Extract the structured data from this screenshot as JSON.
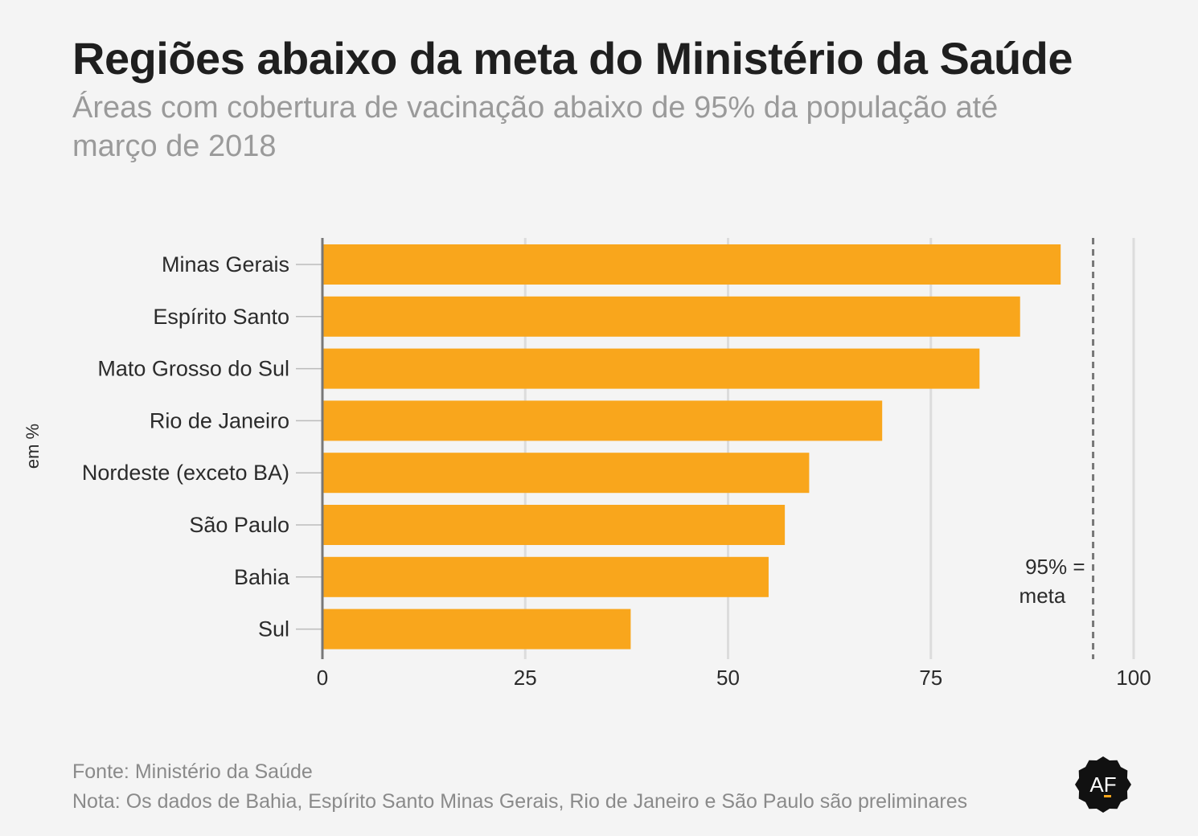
{
  "header": {
    "title": "Regiões abaixo da meta do Ministério da Saúde",
    "subtitle": "Áreas com cobertura de vacinação abaixo de 95% da população até março de 2018"
  },
  "footer": {
    "source": "Fonte: Ministério da Saúde",
    "note": "Nota: Os dados de Bahia, Espírito Santo Minas Gerais, Rio de Janeiro e São Paulo são preliminares"
  },
  "logo": {
    "text": "AF",
    "icon": "af-badge-icon"
  },
  "colors": {
    "bar": "#f9a61c",
    "grid": "#dcdcdc",
    "axis": "#777777",
    "text": "#2b2b2b"
  },
  "chart_data": {
    "type": "bar",
    "orientation": "horizontal",
    "categories": [
      "Minas Gerais",
      "Espírito Santo",
      "Mato Grosso do Sul",
      "Rio de Janeiro",
      "Nordeste (exceto BA)",
      "São Paulo",
      "Bahia",
      "Sul"
    ],
    "values": [
      91,
      86,
      81,
      69,
      60,
      57,
      55,
      38
    ],
    "xlim": [
      0,
      100
    ],
    "xticks": [
      "0",
      "25",
      "50",
      "75",
      "100"
    ],
    "ylabel": "em %",
    "grid": true,
    "reference_line": {
      "value": 95,
      "label_line1": "95% =",
      "label_line2": "meta"
    }
  }
}
